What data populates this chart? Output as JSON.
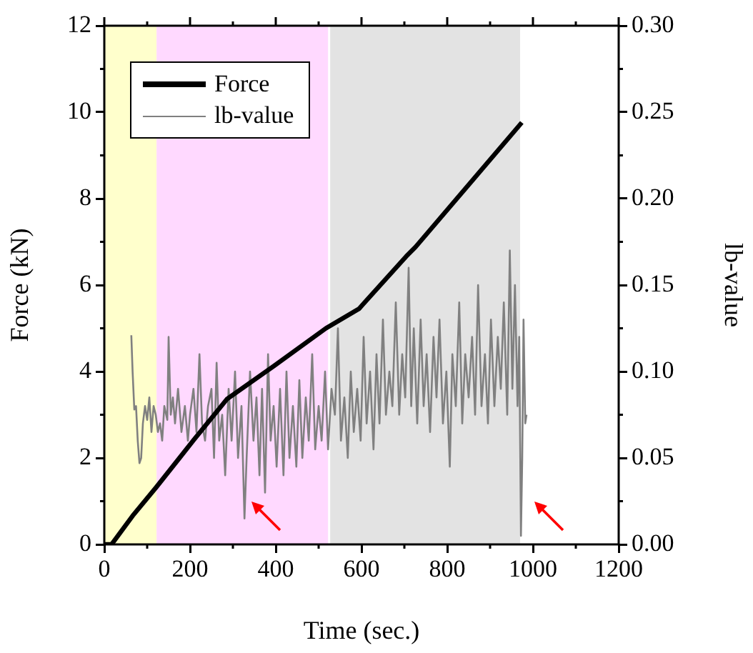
{
  "chart_data": {
    "type": "line",
    "xlabel": "Time (sec.)",
    "ylabel": "Force (kN)",
    "y2label": "lb-value",
    "xlim": [
      0,
      1200
    ],
    "xticks": [
      0,
      200,
      400,
      600,
      800,
      1000,
      1200
    ],
    "ylim": [
      0,
      12
    ],
    "yticks": [
      0,
      2,
      4,
      6,
      8,
      10,
      12
    ],
    "y2lim": [
      0,
      0.3
    ],
    "y2ticks": [
      {
        "value": 0,
        "label": "0.00"
      },
      {
        "value": 0.05,
        "label": "0.05"
      },
      {
        "value": 0.1,
        "label": "0.10"
      },
      {
        "value": 0.15,
        "label": "0.15"
      },
      {
        "value": 0.2,
        "label": "0.20"
      },
      {
        "value": 0.25,
        "label": "0.25"
      },
      {
        "value": 0.3,
        "label": "0.30"
      }
    ],
    "legend": "top left",
    "grid": false,
    "marker": "none",
    "line_style": "solid",
    "bands": [
      {
        "axis": "x",
        "from": 0,
        "to": 122,
        "color": "#ffffcc"
      },
      {
        "axis": "x",
        "from": 122,
        "to": 522,
        "color": "#ffd9ff"
      },
      {
        "axis": "x",
        "from": 527,
        "to": 970,
        "color": "#e3e3e3"
      }
    ],
    "series": [
      {
        "name": "Force",
        "color": "#000000",
        "x": [
          0,
          17,
          66,
          121,
          209,
          286,
          396,
          517,
          594,
          704,
          726,
          974
        ],
        "values": [
          0,
          0,
          0.66,
          1.32,
          2.42,
          3.36,
          4.13,
          5.0,
          5.45,
          6.66,
          6.88,
          9.76
        ]
      },
      {
        "name": "lb-value",
        "color": "#808080",
        "axis": "y2",
        "x": [
          63,
          66,
          70,
          74,
          78,
          82,
          86,
          90,
          95,
          100,
          105,
          110,
          115,
          120,
          125,
          130,
          135,
          140,
          147,
          150,
          155,
          160,
          165,
          172,
          180,
          188,
          195,
          200,
          208,
          215,
          222,
          228,
          235,
          242,
          250,
          256,
          262,
          268,
          275,
          282,
          290,
          297,
          305,
          312,
          320,
          327,
          332,
          340,
          348,
          355,
          362,
          368,
          375,
          382,
          388,
          395,
          402,
          410,
          418,
          425,
          432,
          440,
          448,
          455,
          462,
          470,
          477,
          485,
          492,
          500,
          507,
          515,
          522,
          530,
          538,
          545,
          552,
          560,
          568,
          575,
          582,
          590,
          598,
          605,
          612,
          620,
          628,
          635,
          642,
          650,
          657,
          665,
          672,
          680,
          688,
          695,
          702,
          710,
          716,
          722,
          730,
          738,
          745,
          752,
          760,
          768,
          775,
          782,
          790,
          798,
          806,
          812,
          820,
          828,
          835,
          842,
          850,
          858,
          865,
          872,
          880,
          888,
          895,
          902,
          910,
          918,
          925,
          932,
          940,
          946,
          952,
          958,
          964,
          968,
          972,
          975,
          978,
          982,
          985
        ],
        "values": [
          0.121,
          0.1,
          0.078,
          0.08,
          0.06,
          0.047,
          0.05,
          0.07,
          0.08,
          0.072,
          0.085,
          0.065,
          0.08,
          0.075,
          0.065,
          0.07,
          0.06,
          0.08,
          0.072,
          0.12,
          0.075,
          0.085,
          0.07,
          0.09,
          0.065,
          0.08,
          0.06,
          0.075,
          0.09,
          0.065,
          0.11,
          0.07,
          0.06,
          0.08,
          0.09,
          0.05,
          0.105,
          0.06,
          0.075,
          0.04,
          0.09,
          0.06,
          0.1,
          0.05,
          0.08,
          0.015,
          0.05,
          0.1,
          0.06,
          0.085,
          0.04,
          0.09,
          0.03,
          0.11,
          0.06,
          0.08,
          0.045,
          0.09,
          0.04,
          0.1,
          0.05,
          0.08,
          0.045,
          0.095,
          0.05,
          0.085,
          0.06,
          0.11,
          0.055,
          0.08,
          0.06,
          0.1,
          0.055,
          0.09,
          0.075,
          0.125,
          0.06,
          0.085,
          0.05,
          0.1,
          0.065,
          0.09,
          0.06,
          0.12,
          0.07,
          0.1,
          0.055,
          0.11,
          0.07,
          0.13,
          0.075,
          0.1,
          0.08,
          0.14,
          0.075,
          0.11,
          0.085,
          0.16,
          0.08,
          0.125,
          0.07,
          0.13,
          0.08,
          0.11,
          0.065,
          0.12,
          0.085,
          0.13,
          0.07,
          0.1,
          0.045,
          0.11,
          0.08,
          0.14,
          0.07,
          0.11,
          0.085,
          0.12,
          0.075,
          0.15,
          0.08,
          0.11,
          0.07,
          0.13,
          0.08,
          0.12,
          0.09,
          0.14,
          0.075,
          0.17,
          0.09,
          0.15,
          0.08,
          0.12,
          0.005,
          0.05,
          0.13,
          0.07,
          0.075
        ]
      }
    ]
  }
}
